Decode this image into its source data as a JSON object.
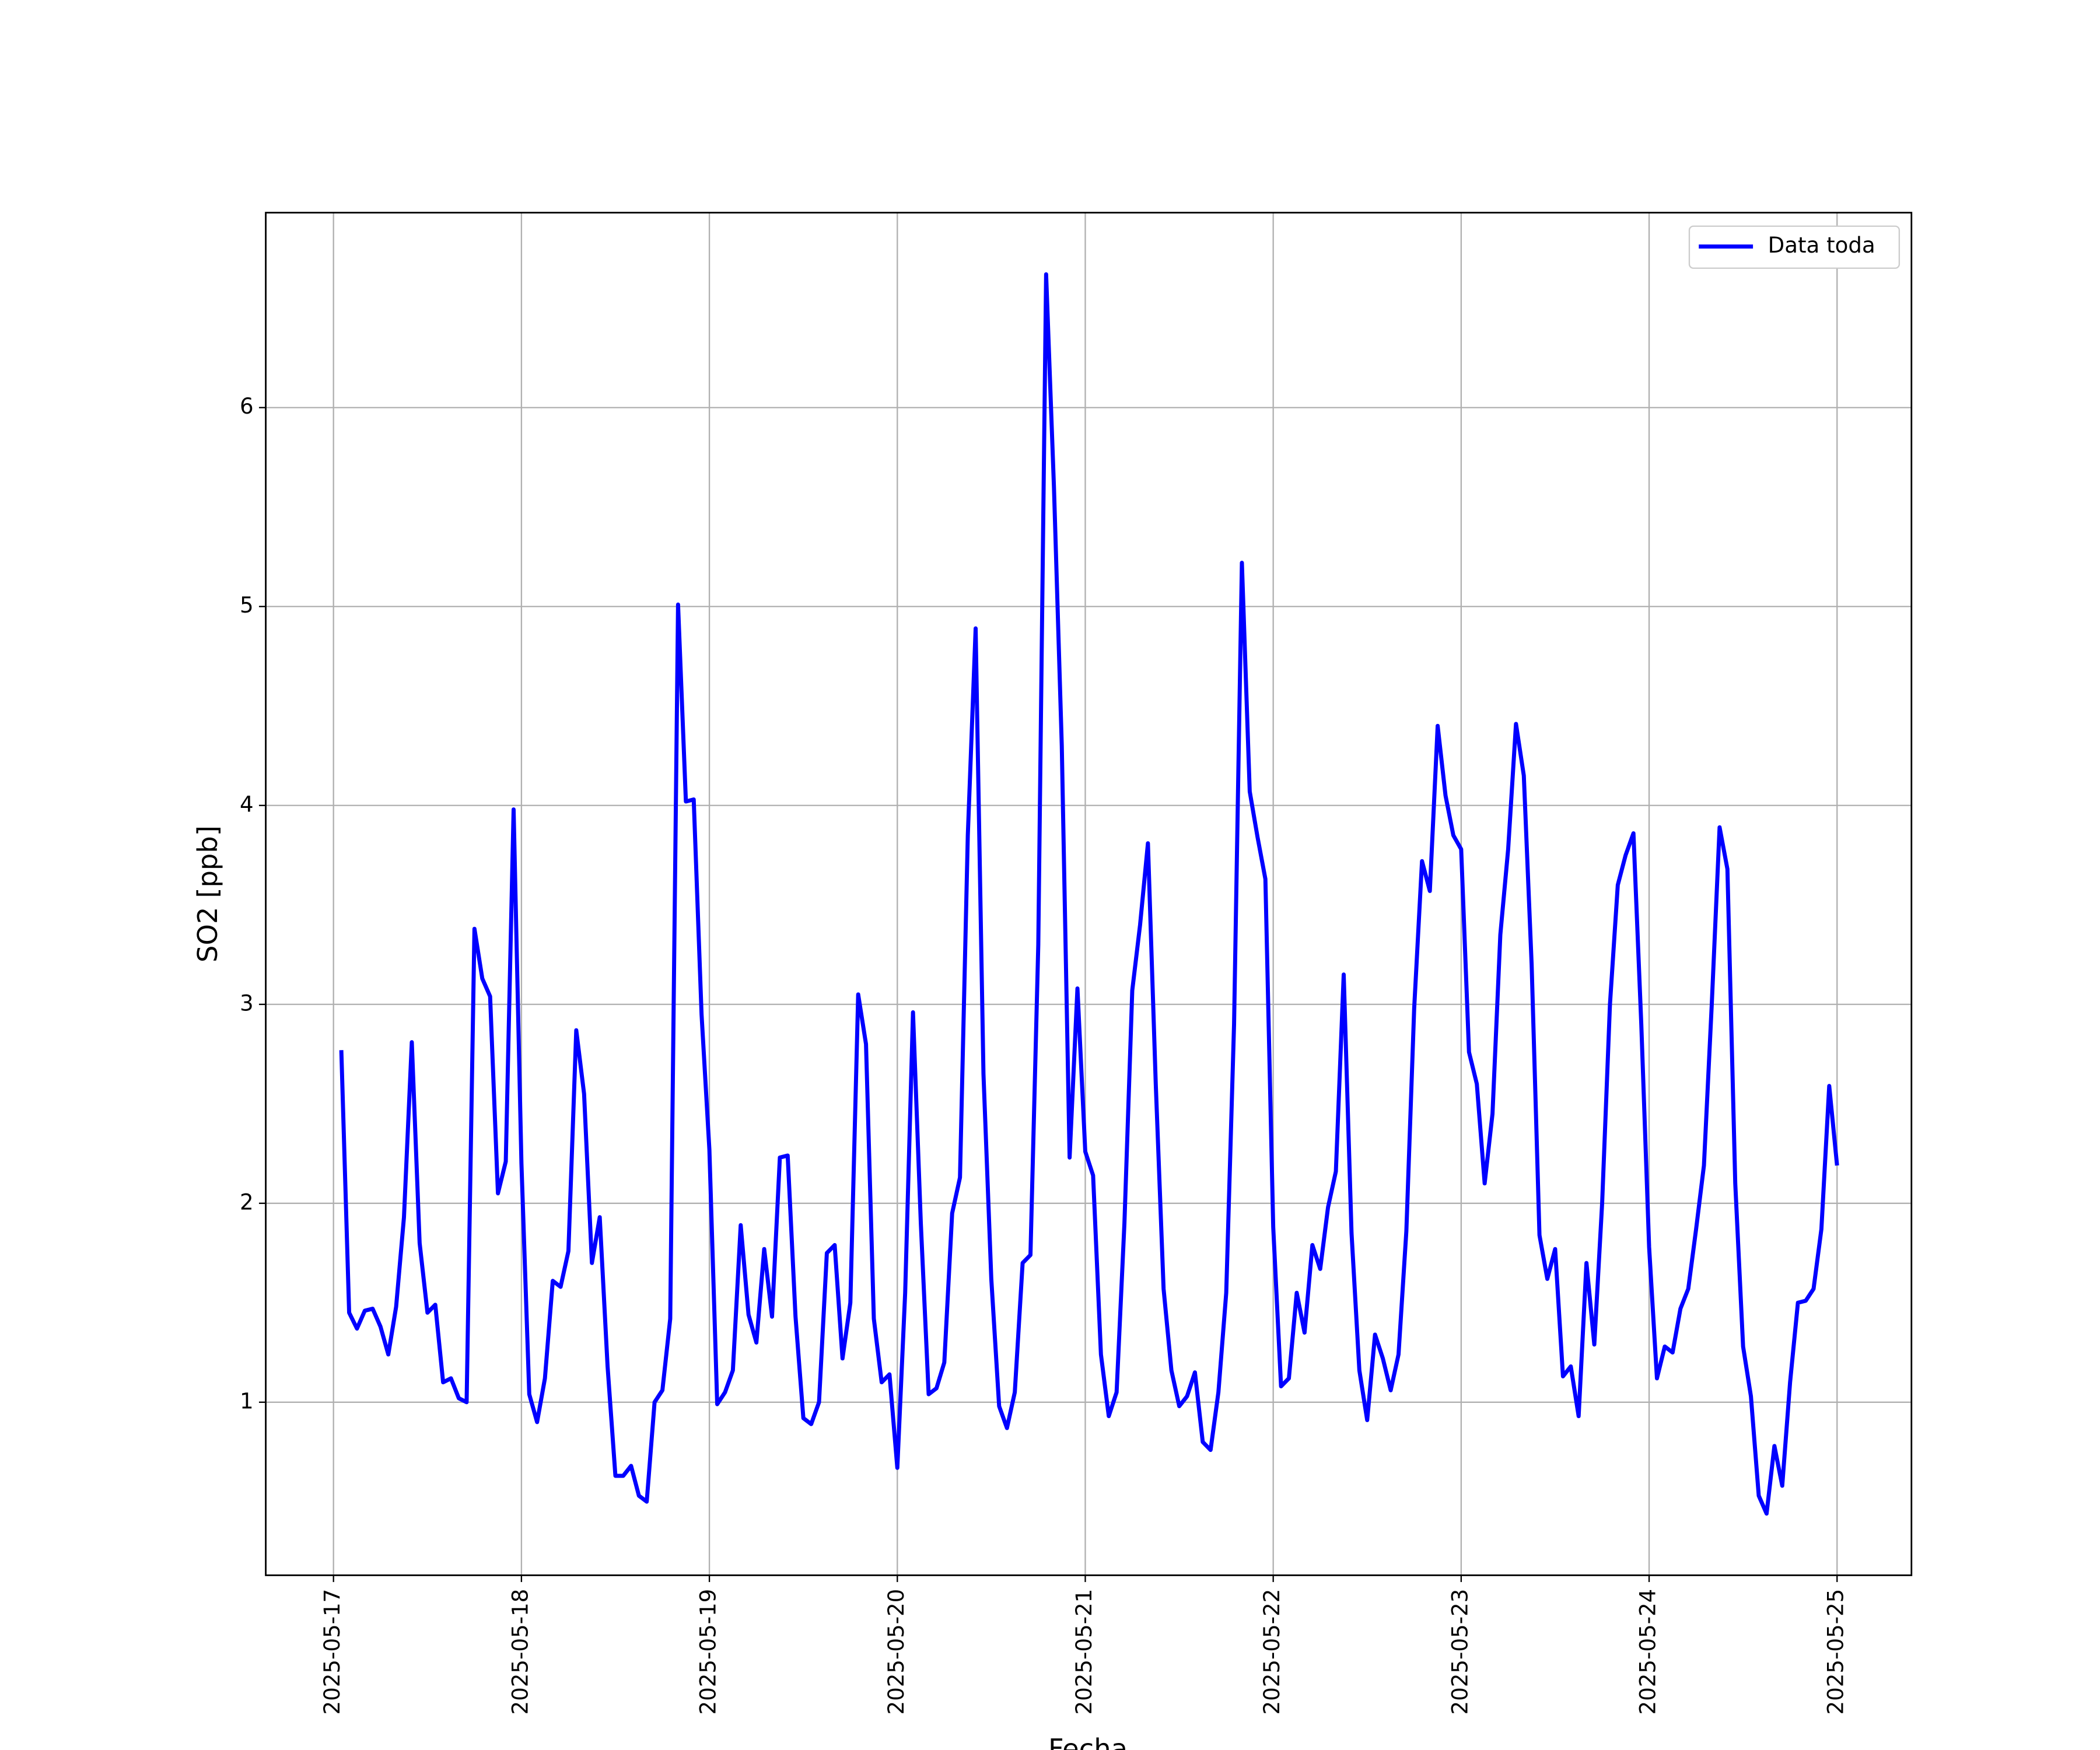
{
  "chart_data": {
    "type": "line",
    "xlabel": "Fecha",
    "ylabel": "SO2 [ppb]",
    "x": [
      "2025-05-17 01:00",
      "2025-05-17 02:00",
      "2025-05-17 03:00",
      "2025-05-17 04:00",
      "2025-05-17 05:00",
      "2025-05-17 06:00",
      "2025-05-17 07:00",
      "2025-05-17 08:00",
      "2025-05-17 09:00",
      "2025-05-17 10:00",
      "2025-05-17 11:00",
      "2025-05-17 12:00",
      "2025-05-17 13:00",
      "2025-05-17 14:00",
      "2025-05-17 15:00",
      "2025-05-17 16:00",
      "2025-05-17 17:00",
      "2025-05-17 18:00",
      "2025-05-17 19:00",
      "2025-05-17 20:00",
      "2025-05-17 21:00",
      "2025-05-17 22:00",
      "2025-05-17 23:00",
      "2025-05-18 00:00",
      "2025-05-18 01:00",
      "2025-05-18 02:00",
      "2025-05-18 03:00",
      "2025-05-18 04:00",
      "2025-05-18 05:00",
      "2025-05-18 06:00",
      "2025-05-18 07:00",
      "2025-05-18 08:00",
      "2025-05-18 09:00",
      "2025-05-18 10:00",
      "2025-05-18 11:00",
      "2025-05-18 12:00",
      "2025-05-18 13:00",
      "2025-05-18 14:00",
      "2025-05-18 15:00",
      "2025-05-18 16:00",
      "2025-05-18 17:00",
      "2025-05-18 18:00",
      "2025-05-18 19:00",
      "2025-05-18 20:00",
      "2025-05-18 21:00",
      "2025-05-18 22:00",
      "2025-05-18 23:00",
      "2025-05-19 00:00",
      "2025-05-19 01:00",
      "2025-05-19 02:00",
      "2025-05-19 03:00",
      "2025-05-19 04:00",
      "2025-05-19 05:00",
      "2025-05-19 06:00",
      "2025-05-19 07:00",
      "2025-05-19 08:00",
      "2025-05-19 09:00",
      "2025-05-19 10:00",
      "2025-05-19 11:00",
      "2025-05-19 12:00",
      "2025-05-19 13:00",
      "2025-05-19 14:00",
      "2025-05-19 15:00",
      "2025-05-19 16:00",
      "2025-05-19 17:00",
      "2025-05-19 18:00",
      "2025-05-19 19:00",
      "2025-05-19 20:00",
      "2025-05-19 21:00",
      "2025-05-19 22:00",
      "2025-05-19 23:00",
      "2025-05-20 00:00",
      "2025-05-20 01:00",
      "2025-05-20 02:00",
      "2025-05-20 03:00",
      "2025-05-20 04:00",
      "2025-05-20 05:00",
      "2025-05-20 06:00",
      "2025-05-20 07:00",
      "2025-05-20 08:00",
      "2025-05-20 09:00",
      "2025-05-20 10:00",
      "2025-05-20 11:00",
      "2025-05-20 12:00",
      "2025-05-20 13:00",
      "2025-05-20 14:00",
      "2025-05-20 15:00",
      "2025-05-20 16:00",
      "2025-05-20 17:00",
      "2025-05-20 18:00",
      "2025-05-20 19:00",
      "2025-05-20 20:00",
      "2025-05-20 21:00",
      "2025-05-20 22:00",
      "2025-05-20 23:00",
      "2025-05-21 00:00",
      "2025-05-21 01:00",
      "2025-05-21 02:00",
      "2025-05-21 03:00",
      "2025-05-21 04:00",
      "2025-05-21 05:00",
      "2025-05-21 06:00",
      "2025-05-21 07:00",
      "2025-05-21 08:00",
      "2025-05-21 09:00",
      "2025-05-21 10:00",
      "2025-05-21 11:00",
      "2025-05-21 12:00",
      "2025-05-21 13:00",
      "2025-05-21 14:00",
      "2025-05-21 15:00",
      "2025-05-21 16:00",
      "2025-05-21 17:00",
      "2025-05-21 18:00",
      "2025-05-21 19:00",
      "2025-05-21 20:00",
      "2025-05-21 21:00",
      "2025-05-21 22:00",
      "2025-05-21 23:00",
      "2025-05-22 00:00",
      "2025-05-22 01:00",
      "2025-05-22 02:00",
      "2025-05-22 03:00",
      "2025-05-22 04:00",
      "2025-05-22 05:00",
      "2025-05-22 06:00",
      "2025-05-22 07:00",
      "2025-05-22 08:00",
      "2025-05-22 09:00",
      "2025-05-22 10:00",
      "2025-05-22 11:00",
      "2025-05-22 12:00",
      "2025-05-22 13:00",
      "2025-05-22 14:00",
      "2025-05-22 15:00",
      "2025-05-22 16:00",
      "2025-05-22 17:00",
      "2025-05-22 18:00",
      "2025-05-22 19:00",
      "2025-05-22 20:00",
      "2025-05-22 21:00",
      "2025-05-22 22:00",
      "2025-05-22 23:00",
      "2025-05-23 00:00",
      "2025-05-23 01:00",
      "2025-05-23 02:00",
      "2025-05-23 03:00",
      "2025-05-23 04:00",
      "2025-05-23 05:00",
      "2025-05-23 06:00",
      "2025-05-23 07:00",
      "2025-05-23 08:00",
      "2025-05-23 09:00",
      "2025-05-23 10:00",
      "2025-05-23 11:00",
      "2025-05-23 12:00",
      "2025-05-23 13:00",
      "2025-05-23 14:00",
      "2025-05-23 15:00",
      "2025-05-23 16:00",
      "2025-05-23 17:00",
      "2025-05-23 18:00",
      "2025-05-23 19:00",
      "2025-05-23 20:00",
      "2025-05-23 21:00",
      "2025-05-23 22:00",
      "2025-05-23 23:00",
      "2025-05-24 00:00",
      "2025-05-24 01:00",
      "2025-05-24 02:00",
      "2025-05-24 03:00",
      "2025-05-24 04:00",
      "2025-05-24 05:00",
      "2025-05-24 06:00",
      "2025-05-24 07:00",
      "2025-05-24 08:00",
      "2025-05-24 09:00",
      "2025-05-24 10:00",
      "2025-05-24 11:00",
      "2025-05-24 12:00",
      "2025-05-24 13:00",
      "2025-05-24 14:00",
      "2025-05-24 15:00",
      "2025-05-24 16:00",
      "2025-05-24 17:00",
      "2025-05-24 18:00",
      "2025-05-24 19:00",
      "2025-05-24 20:00",
      "2025-05-24 21:00",
      "2025-05-24 22:00",
      "2025-05-24 23:00",
      "2025-05-25 00:00"
    ],
    "series": [
      {
        "name": "Data toda",
        "color": "#0000ff",
        "values": [
          2.77,
          1.45,
          1.37,
          1.46,
          1.47,
          1.38,
          1.24,
          1.48,
          1.93,
          2.81,
          1.8,
          1.45,
          1.49,
          1.1,
          1.12,
          1.02,
          1.0,
          3.38,
          3.13,
          3.04,
          2.05,
          2.21,
          3.98,
          2.2,
          1.04,
          0.9,
          1.12,
          1.61,
          1.58,
          1.76,
          2.87,
          2.55,
          1.7,
          1.93,
          1.18,
          0.63,
          0.63,
          0.68,
          0.53,
          0.5,
          1.0,
          1.06,
          1.42,
          5.01,
          4.02,
          4.03,
          2.95,
          2.27,
          0.99,
          1.05,
          1.16,
          1.89,
          1.44,
          1.3,
          1.77,
          1.43,
          2.23,
          2.24,
          1.43,
          0.92,
          0.89,
          1.0,
          1.75,
          1.79,
          1.22,
          1.5,
          3.05,
          2.8,
          1.42,
          1.1,
          1.14,
          0.67,
          1.55,
          2.96,
          1.9,
          1.04,
          1.07,
          1.2,
          1.95,
          2.13,
          3.85,
          4.89,
          2.65,
          1.62,
          0.98,
          0.87,
          1.05,
          1.7,
          1.74,
          3.3,
          6.67,
          5.6,
          4.3,
          2.23,
          3.08,
          2.26,
          2.14,
          1.24,
          0.93,
          1.05,
          1.9,
          3.07,
          3.4,
          3.81,
          2.6,
          1.57,
          1.16,
          0.98,
          1.03,
          1.15,
          0.8,
          0.76,
          1.05,
          1.55,
          2.9,
          5.22,
          4.07,
          3.84,
          3.63,
          1.88,
          1.08,
          1.12,
          1.55,
          1.35,
          1.79,
          1.67,
          1.98,
          2.16,
          3.15,
          1.85,
          1.16,
          0.91,
          1.34,
          1.22,
          1.06,
          1.24,
          1.86,
          2.98,
          3.72,
          3.57,
          4.4,
          4.05,
          3.85,
          3.78,
          2.76,
          2.6,
          2.1,
          2.45,
          3.35,
          3.78,
          4.41,
          4.15,
          3.2,
          1.84,
          1.62,
          1.77,
          1.13,
          1.18,
          0.93,
          1.7,
          1.29,
          2.0,
          3.0,
          3.6,
          3.75,
          3.86,
          2.9,
          1.78,
          1.12,
          1.28,
          1.25,
          1.47,
          1.57,
          1.87,
          2.19,
          3.0,
          3.89,
          3.68,
          2.1,
          1.28,
          1.03,
          0.53,
          0.44,
          0.78,
          0.58,
          1.1,
          1.5,
          1.51,
          1.57,
          1.87,
          2.59,
          2.19
        ]
      }
    ],
    "xlim": [
      "2025-05-16 15:21",
      "2025-05-25 09:30"
    ],
    "xticks": [
      "2025-05-17",
      "2025-05-18",
      "2025-05-19",
      "2025-05-20",
      "2025-05-21",
      "2025-05-22",
      "2025-05-23",
      "2025-05-24",
      "2025-05-25"
    ],
    "ylim": [
      0.13,
      6.98
    ],
    "yticks": [
      1,
      2,
      3,
      4,
      5,
      6
    ],
    "grid": true,
    "legend": "upper right"
  }
}
